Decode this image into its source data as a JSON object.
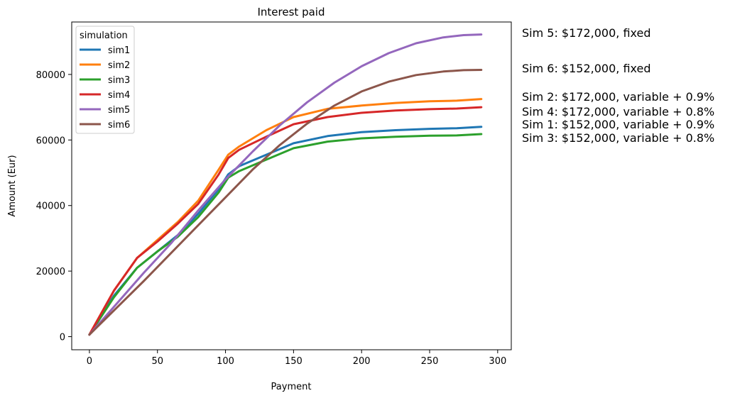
{
  "chart_data": {
    "type": "line",
    "title": "Interest paid",
    "xlabel": "Payment",
    "ylabel": "Amount (Eur)",
    "xlim": [
      -13,
      310
    ],
    "ylim": [
      -4000,
      96000
    ],
    "xticks": [
      0,
      50,
      100,
      150,
      200,
      250,
      300
    ],
    "yticks": [
      0,
      20000,
      40000,
      60000,
      80000
    ],
    "grid": false,
    "legend": {
      "title": "simulation",
      "placement": "top-left"
    },
    "series": [
      {
        "name": "sim1",
        "color": "#1f77b4",
        "x": [
          0,
          18,
          35,
          50,
          65,
          80,
          95,
          102,
          110,
          130,
          150,
          175,
          200,
          225,
          250,
          270,
          288
        ],
        "y": [
          600,
          12500,
          21000,
          26000,
          31000,
          37500,
          45000,
          49500,
          52000,
          55500,
          59000,
          61200,
          62400,
          63000,
          63400,
          63600,
          64000
        ]
      },
      {
        "name": "sim2",
        "color": "#ff7f0e",
        "x": [
          0,
          18,
          35,
          50,
          65,
          80,
          95,
          102,
          110,
          130,
          150,
          175,
          200,
          225,
          250,
          270,
          288
        ],
        "y": [
          600,
          14000,
          24000,
          29500,
          35000,
          41500,
          51000,
          55500,
          58000,
          63000,
          67000,
          69500,
          70500,
          71300,
          71800,
          72000,
          72500
        ]
      },
      {
        "name": "sim3",
        "color": "#2ca02c",
        "x": [
          0,
          18,
          35,
          50,
          65,
          80,
          95,
          102,
          110,
          130,
          150,
          175,
          200,
          225,
          250,
          270,
          288
        ],
        "y": [
          600,
          12000,
          21000,
          26000,
          30500,
          36500,
          44000,
          48500,
          50500,
          54000,
          57500,
          59500,
          60500,
          61000,
          61300,
          61400,
          61800
        ]
      },
      {
        "name": "sim4",
        "color": "#d62728",
        "x": [
          0,
          18,
          35,
          50,
          65,
          80,
          95,
          102,
          110,
          130,
          150,
          175,
          200,
          225,
          250,
          270,
          288
        ],
        "y": [
          600,
          14000,
          24000,
          29000,
          34500,
          40500,
          49500,
          54500,
          57000,
          61000,
          64800,
          67000,
          68300,
          69000,
          69400,
          69600,
          70000
        ]
      },
      {
        "name": "sim5",
        "color": "#9467bd",
        "x": [
          0,
          20,
          40,
          60,
          80,
          100,
          120,
          140,
          160,
          180,
          200,
          220,
          240,
          260,
          275,
          288
        ],
        "y": [
          600,
          10000,
          19500,
          28500,
          38500,
          48000,
          56500,
          64500,
          71500,
          77500,
          82500,
          86500,
          89500,
          91300,
          92000,
          92200
        ]
      },
      {
        "name": "sim6",
        "color": "#8c564b",
        "x": [
          0,
          20,
          40,
          60,
          80,
          100,
          120,
          140,
          160,
          180,
          200,
          220,
          240,
          260,
          275,
          288
        ],
        "y": [
          600,
          8800,
          17000,
          25500,
          34000,
          42500,
          51000,
          58500,
          65000,
          70500,
          74800,
          77800,
          79800,
          80900,
          81300,
          81400
        ]
      }
    ],
    "annotations": [
      {
        "text": "Sim 5: $172,000, fixed"
      },
      {
        "text": "Sim 6: $152,000, fixed"
      },
      {
        "text": "Sim 2: $172,000, variable + 0.9%"
      },
      {
        "text": "Sim 4: $172,000, variable + 0.8%"
      },
      {
        "text": "Sim 1: $152,000, variable + 0.9%"
      },
      {
        "text": "Sim 3: $152,000, variable + 0.8%"
      }
    ]
  }
}
